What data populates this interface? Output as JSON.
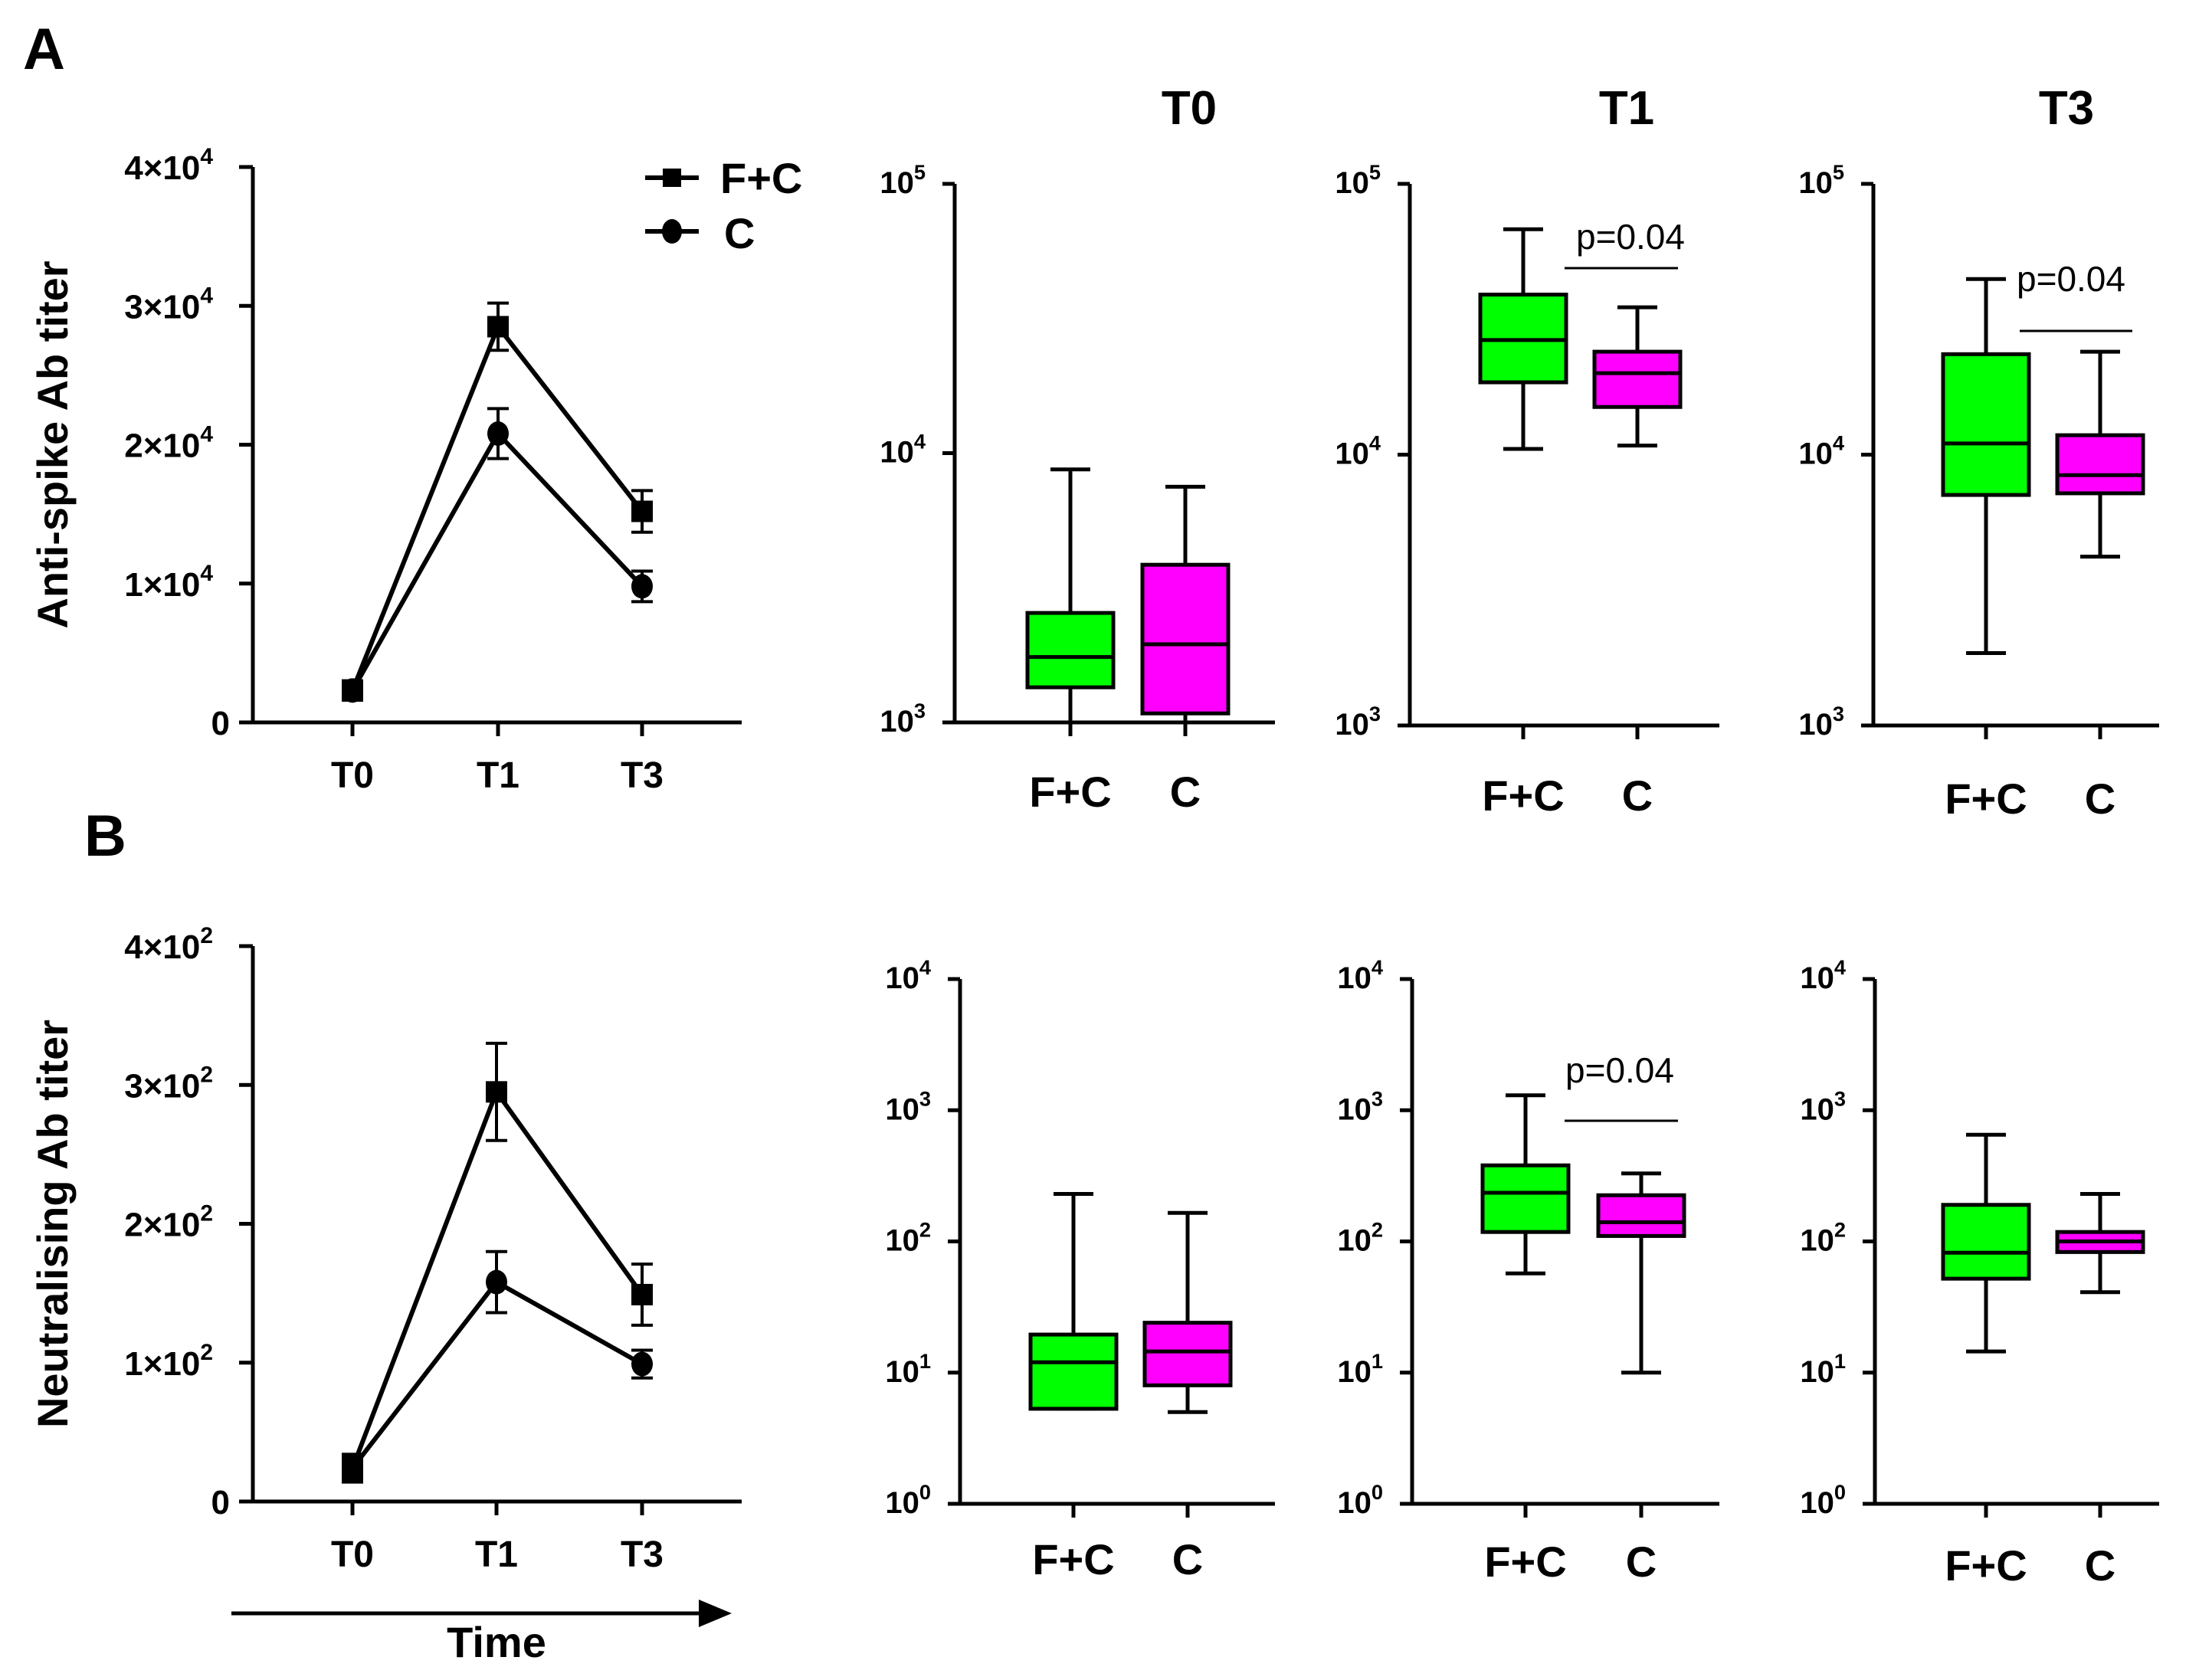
{
  "panels": {
    "A": "A",
    "B": "B"
  },
  "timepoints": {
    "T0": "T0",
    "T1": "T1",
    "T3": "T3"
  },
  "legend": {
    "fc": "F+C",
    "c": "C"
  },
  "time_axis_label": "Time",
  "colors": {
    "fc_box": "#00ff00",
    "c_box": "#ff00ff",
    "ink": "#000000"
  },
  "chart_data": [
    {
      "id": "A-line",
      "type": "line",
      "panel": "A",
      "ylabel": "Anti-spike Ab titer",
      "categories": [
        "T0",
        "T1",
        "T3"
      ],
      "ylim": [
        0,
        40000
      ],
      "yticks": [
        {
          "value": 0,
          "mant": "0",
          "exp": ""
        },
        {
          "value": 10000,
          "mant": "1×10",
          "exp": "4"
        },
        {
          "value": 20000,
          "mant": "2×10",
          "exp": "4"
        },
        {
          "value": 30000,
          "mant": "3×10",
          "exp": "4"
        },
        {
          "value": 40000,
          "mant": "4×10",
          "exp": "4"
        }
      ],
      "series": [
        {
          "name": "F+C",
          "marker": "square",
          "values": [
            2300,
            28500,
            15200
          ],
          "err": [
            700,
            1700,
            1500
          ]
        },
        {
          "name": "C",
          "marker": "circle",
          "values": [
            2300,
            20800,
            9800
          ],
          "err": [
            600,
            1800,
            1100
          ]
        }
      ]
    },
    {
      "id": "A-box-T0",
      "type": "box",
      "panel": "A",
      "title": "T0",
      "scale": "log",
      "ylim": [
        1000,
        100000
      ],
      "yticks": [
        {
          "value": 1000,
          "mant": "10",
          "exp": "3"
        },
        {
          "value": 10000,
          "mant": "10",
          "exp": "4"
        },
        {
          "value": 100000,
          "mant": "10",
          "exp": "5"
        }
      ],
      "categories": [
        "F+C",
        "C"
      ],
      "boxes": [
        {
          "min": 1000,
          "q1": 1350,
          "median": 1750,
          "q3": 2550,
          "max": 8700
        },
        {
          "min": 1000,
          "q1": 1080,
          "median": 1950,
          "q3": 3850,
          "max": 7500
        }
      ]
    },
    {
      "id": "A-box-T1",
      "type": "box",
      "panel": "A",
      "title": "T1",
      "scale": "log",
      "ylim": [
        1000,
        100000
      ],
      "yticks": [
        {
          "value": 1000,
          "mant": "10",
          "exp": "3"
        },
        {
          "value": 10000,
          "mant": "10",
          "exp": "4"
        },
        {
          "value": 100000,
          "mant": "10",
          "exp": "5"
        }
      ],
      "categories": [
        "F+C",
        "C"
      ],
      "boxes": [
        {
          "min": 10500,
          "q1": 18500,
          "median": 26500,
          "q3": 39000,
          "max": 68000
        },
        {
          "min": 10800,
          "q1": 15000,
          "median": 20000,
          "q3": 24000,
          "max": 35000
        }
      ],
      "annotation": "p=0.04"
    },
    {
      "id": "A-box-T3",
      "type": "box",
      "panel": "A",
      "title": "T3",
      "scale": "log",
      "ylim": [
        1000,
        100000
      ],
      "yticks": [
        {
          "value": 1000,
          "mant": "10",
          "exp": "3"
        },
        {
          "value": 10000,
          "mant": "10",
          "exp": "4"
        },
        {
          "value": 100000,
          "mant": "10",
          "exp": "5"
        }
      ],
      "categories": [
        "F+C",
        "C"
      ],
      "boxes": [
        {
          "min": 1850,
          "q1": 7100,
          "median": 11000,
          "q3": 23500,
          "max": 44500
        },
        {
          "min": 4200,
          "q1": 7200,
          "median": 8400,
          "q3": 11800,
          "max": 24000
        }
      ],
      "annotation": "p=0.04"
    },
    {
      "id": "B-line",
      "type": "line",
      "panel": "B",
      "ylabel": "Neutralising Ab titer",
      "categories": [
        "T0",
        "T1",
        "T3"
      ],
      "ylim": [
        0,
        400
      ],
      "yticks": [
        {
          "value": 0,
          "mant": "0",
          "exp": ""
        },
        {
          "value": 100,
          "mant": "1×10",
          "exp": "2"
        },
        {
          "value": 200,
          "mant": "2×10",
          "exp": "2"
        },
        {
          "value": 300,
          "mant": "3×10",
          "exp": "2"
        },
        {
          "value": 400,
          "mant": "4×10",
          "exp": "2"
        }
      ],
      "series": [
        {
          "name": "F+C",
          "marker": "square",
          "values": [
            24,
            295,
            149
          ],
          "err": [
            10,
            35,
            22
          ]
        },
        {
          "name": "C",
          "marker": "circle",
          "values": [
            24,
            158,
            99
          ],
          "err": [
            8,
            22,
            10
          ]
        }
      ]
    },
    {
      "id": "B-box-T0",
      "type": "box",
      "panel": "B",
      "scale": "log",
      "ylim": [
        1,
        10000
      ],
      "yticks": [
        {
          "value": 1,
          "mant": "10",
          "exp": "0"
        },
        {
          "value": 10,
          "mant": "10",
          "exp": "1"
        },
        {
          "value": 100,
          "mant": "10",
          "exp": "2"
        },
        {
          "value": 1000,
          "mant": "10",
          "exp": "3"
        },
        {
          "value": 10000,
          "mant": "10",
          "exp": "4"
        }
      ],
      "categories": [
        "F+C",
        "C"
      ],
      "boxes": [
        {
          "min": 5.3,
          "q1": 5.3,
          "median": 12,
          "q3": 19.5,
          "max": 230
        },
        {
          "min": 5,
          "q1": 8,
          "median": 14.5,
          "q3": 24,
          "max": 165
        }
      ]
    },
    {
      "id": "B-box-T1",
      "type": "box",
      "panel": "B",
      "scale": "log",
      "ylim": [
        1,
        10000
      ],
      "yticks": [
        {
          "value": 1,
          "mant": "10",
          "exp": "0"
        },
        {
          "value": 10,
          "mant": "10",
          "exp": "1"
        },
        {
          "value": 100,
          "mant": "10",
          "exp": "2"
        },
        {
          "value": 1000,
          "mant": "10",
          "exp": "3"
        },
        {
          "value": 10000,
          "mant": "10",
          "exp": "4"
        }
      ],
      "categories": [
        "F+C",
        "C"
      ],
      "boxes": [
        {
          "min": 57,
          "q1": 118,
          "median": 235,
          "q3": 380,
          "max": 1300
        },
        {
          "min": 10,
          "q1": 110,
          "median": 140,
          "q3": 225,
          "max": 330
        }
      ],
      "annotation": "p=0.04"
    },
    {
      "id": "B-box-T3",
      "type": "box",
      "panel": "B",
      "scale": "log",
      "ylim": [
        1,
        10000
      ],
      "yticks": [
        {
          "value": 1,
          "mant": "10",
          "exp": "0"
        },
        {
          "value": 10,
          "mant": "10",
          "exp": "1"
        },
        {
          "value": 100,
          "mant": "10",
          "exp": "2"
        },
        {
          "value": 1000,
          "mant": "10",
          "exp": "3"
        },
        {
          "value": 10000,
          "mant": "10",
          "exp": "4"
        }
      ],
      "categories": [
        "F+C",
        "C"
      ],
      "boxes": [
        {
          "min": 14.5,
          "q1": 52,
          "median": 82,
          "q3": 190,
          "max": 650
        },
        {
          "min": 41,
          "q1": 83,
          "median": 100,
          "q3": 118,
          "max": 230
        }
      ]
    }
  ]
}
